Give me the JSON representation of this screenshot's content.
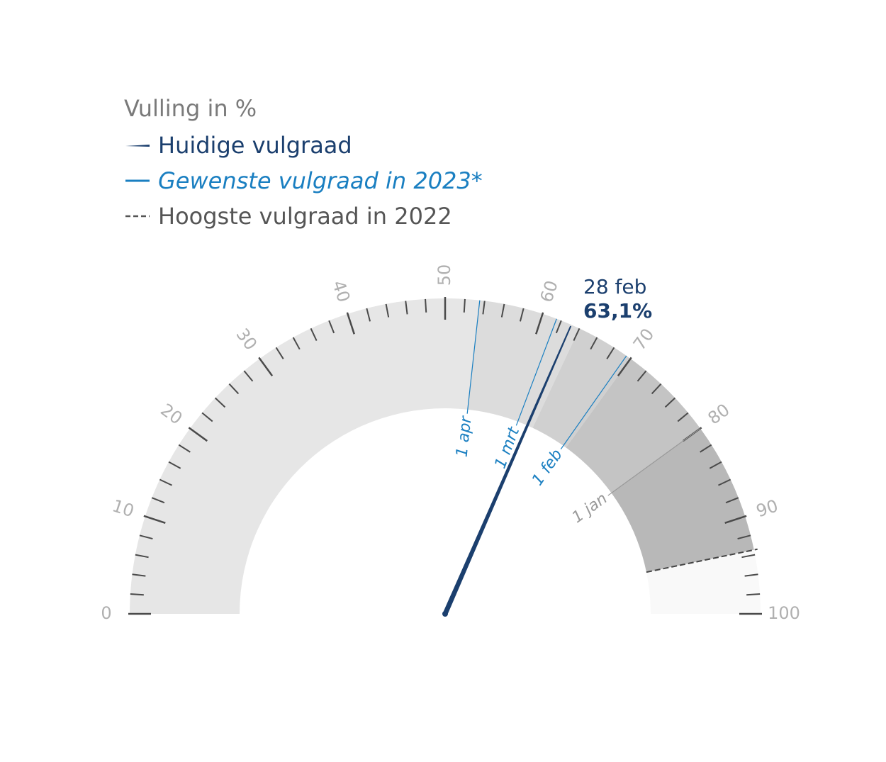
{
  "chart_data": {
    "type": "gauge",
    "title": "Vulling in %",
    "legend": [
      {
        "label": "Huidige vulgraad",
        "color": "#1b3f6e",
        "style": "needle"
      },
      {
        "label": "Gewenste vulgraad in 2023*",
        "color": "#1a7fc1",
        "style": "line"
      },
      {
        "label": "Hoogste vulgraad in 2022",
        "color": "#555555",
        "style": "dashed"
      }
    ],
    "range": [
      0,
      100
    ],
    "major_ticks": [
      0,
      10,
      20,
      30,
      40,
      50,
      60,
      70,
      80,
      90,
      100
    ],
    "minor_tick_step": 2,
    "current": {
      "date": "28 feb",
      "value": 63.1,
      "label": "63,1%"
    },
    "desired_2023": [
      {
        "label": "1 apr",
        "value": 53.5,
        "color": "#1a7fc1"
      },
      {
        "label": "1 mrt",
        "value": 61.5,
        "color": "#1a7fc1"
      },
      {
        "label": "1 feb",
        "value": 69.5,
        "color": "#1a7fc1"
      },
      {
        "label": "1 jan",
        "value": 80,
        "color": "#999999"
      }
    ],
    "highest_2022": 93.5,
    "bands": [
      {
        "from": 0,
        "to": 53.5,
        "color": "#e6e6e6"
      },
      {
        "from": 53.5,
        "to": 64,
        "color": "#dcdcdc"
      },
      {
        "from": 64,
        "to": 70,
        "color": "#d0d0d0"
      },
      {
        "from": 70,
        "to": 80,
        "color": "#c4c4c4"
      },
      {
        "from": 80,
        "to": 93.5,
        "color": "#b8b8b8"
      },
      {
        "from": 93.5,
        "to": 100,
        "color": "#f9f9f9"
      }
    ]
  }
}
